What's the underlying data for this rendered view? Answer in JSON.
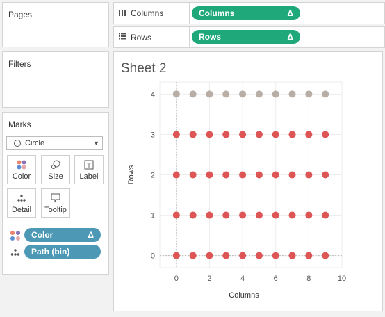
{
  "pages": {
    "title": "Pages"
  },
  "filters": {
    "title": "Filters"
  },
  "marks": {
    "title": "Marks",
    "mark_type": "Circle",
    "buttons": {
      "color": "Color",
      "size": "Size",
      "label": "Label",
      "detail": "Detail",
      "tooltip": "Tooltip"
    },
    "pills": [
      {
        "label": "Color",
        "delta": "Δ",
        "icon": "color-dots-icon"
      },
      {
        "label": "Path (bin)",
        "icon": "detail-dots-icon"
      }
    ]
  },
  "shelves": {
    "columns": {
      "label": "Columns",
      "pill": "Columns",
      "delta": "Δ",
      "icon": "columns-icon"
    },
    "rows": {
      "label": "Rows",
      "pill": "Rows",
      "delta": "Δ",
      "icon": "rows-icon"
    }
  },
  "sheet": {
    "title": "Sheet 2"
  },
  "colors": {
    "red": "#dd5555",
    "gray": "#b8aea6",
    "green": "#1fa87a",
    "blue": "#4c98b5"
  },
  "chart_data": {
    "type": "scatter",
    "xlabel": "Columns",
    "ylabel": "Rows",
    "xlim": [
      -1,
      10
    ],
    "ylim": [
      -0.3,
      4.3
    ],
    "xticks": [
      0,
      2,
      4,
      6,
      8,
      10
    ],
    "yticks": [
      0,
      1,
      2,
      3,
      4
    ],
    "x_values": [
      0,
      1,
      2,
      3,
      4,
      5,
      6,
      7,
      8,
      9
    ],
    "series": [
      {
        "row": 0,
        "color": "#dd5555"
      },
      {
        "row": 1,
        "color": "#dd5555"
      },
      {
        "row": 2,
        "color": "#dd5555"
      },
      {
        "row": 3,
        "color": "#dd5555"
      },
      {
        "row": 4,
        "color": "#b8aea6"
      }
    ]
  }
}
